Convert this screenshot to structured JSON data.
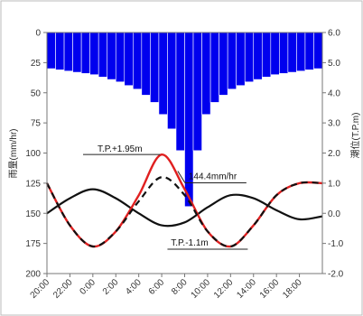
{
  "chart_data": {
    "type": "bar",
    "title": "",
    "ylabel_left": "雨量(mm/hr)",
    "ylabel_right": "潮位(T.P.m)",
    "left_axis": {
      "ylim": [
        0,
        200
      ],
      "inverted": true,
      "ticks": [
        "0",
        "25",
        "50",
        "75",
        "100",
        "125",
        "150",
        "175",
        "200"
      ]
    },
    "right_axis": {
      "ylim": [
        -2.0,
        6.0
      ],
      "ticks": [
        "6.0",
        "5.0",
        "4.0",
        "3.0",
        "2.0",
        "1.0",
        "0.0",
        "-1.0",
        "-2.0"
      ]
    },
    "x_ticks": [
      "20:00",
      "22:00",
      "0:00",
      "2:00",
      "4:00",
      "6:00",
      "8:00",
      "10:00",
      "12:00",
      "14:00",
      "16:00",
      "18:00"
    ],
    "grid": false,
    "rainfall": {
      "name": "雨量",
      "color": "#0000ee",
      "values": [
        30,
        31,
        32,
        33,
        34,
        35,
        37,
        39,
        41,
        44,
        47,
        52,
        58,
        68,
        80,
        98,
        144.4,
        98,
        68,
        58,
        52,
        47,
        44,
        41,
        39,
        37,
        35,
        34,
        33,
        32,
        31,
        30
      ]
    },
    "tide_series": [
      {
        "name": "",
        "color": "#111111",
        "style": "solid",
        "x_hours": [
          0,
          2,
          4,
          6,
          8,
          10,
          12,
          14,
          16,
          18,
          20,
          22,
          24
        ],
        "values": [
          0.0,
          0.5,
          0.8,
          0.5,
          0.0,
          -0.4,
          -0.3,
          0.2,
          0.6,
          0.5,
          0.1,
          -0.2,
          -0.1
        ]
      },
      {
        "name": "",
        "color": "#e02020",
        "style": "solid",
        "x_hours": [
          0,
          2,
          4,
          6,
          8,
          10,
          12,
          14,
          16,
          18,
          20,
          22,
          24
        ],
        "values": [
          1.0,
          -0.4,
          -1.1,
          -0.6,
          0.6,
          1.95,
          0.8,
          -0.6,
          -1.1,
          -0.4,
          0.6,
          1.0,
          1.0
        ]
      },
      {
        "name": "",
        "color": "#111111",
        "style": "dashed",
        "x_hours": [
          0,
          2,
          4,
          6,
          8,
          10,
          12,
          14,
          16,
          18,
          20,
          22,
          24
        ],
        "values": [
          1.0,
          -0.4,
          -1.1,
          -0.6,
          0.4,
          1.2,
          0.6,
          -0.6,
          -1.1,
          -0.4,
          0.6,
          1.0,
          1.0
        ]
      }
    ],
    "annotations": [
      {
        "text": "T.P.+1.95m",
        "x_hour": 9.7,
        "y_tide": 1.95
      },
      {
        "text": "144.4mm/hr",
        "x_hour": 12.5,
        "y_tide": 1.1
      },
      {
        "text": "T.P.-1.1m",
        "x_hour": 12.8,
        "y_tide": -1.1
      }
    ]
  }
}
